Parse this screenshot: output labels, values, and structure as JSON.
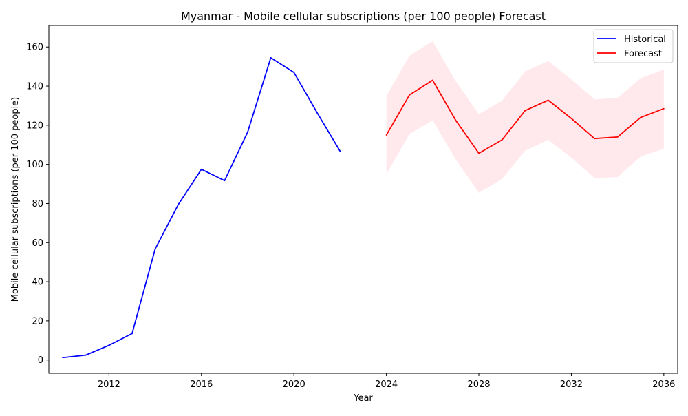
{
  "chart_data": {
    "type": "line",
    "title": "Myanmar - Mobile cellular subscriptions (per 100 people) Forecast",
    "xlabel": "Year",
    "ylabel": "Mobile cellular subscriptions (per 100 people)",
    "xlim": [
      2009.4,
      2036.6
    ],
    "ylim": [
      -6.8,
      171
    ],
    "xticks": [
      2012,
      2016,
      2020,
      2024,
      2028,
      2032,
      2036
    ],
    "yticks": [
      0,
      20,
      40,
      60,
      80,
      100,
      120,
      140,
      160
    ],
    "legend_position": "top-right",
    "grid": false,
    "series": [
      {
        "name": "Historical",
        "color": "#0000ff",
        "x": [
          2010,
          2011,
          2012,
          2013,
          2014,
          2015,
          2016,
          2017,
          2018,
          2019,
          2020,
          2021,
          2022
        ],
        "values": [
          1.2,
          2.5,
          7.5,
          13.5,
          56.8,
          79.5,
          97.5,
          91.7,
          116.5,
          154.5,
          147.0,
          126.5,
          106.7
        ]
      },
      {
        "name": "Forecast",
        "color": "#ff0000",
        "x": [
          2024,
          2025,
          2026,
          2027,
          2028,
          2029,
          2030,
          2031,
          2032,
          2033,
          2034,
          2035,
          2036
        ],
        "values": [
          115.0,
          135.5,
          143.0,
          122.5,
          105.7,
          112.5,
          127.5,
          132.8,
          123.5,
          113.2,
          114.0,
          124.0,
          128.5
        ],
        "lower": [
          95.0,
          115.5,
          122.5,
          102.5,
          85.5,
          92.5,
          107.0,
          112.5,
          103.5,
          93.0,
          93.5,
          104.0,
          108.0
        ],
        "upper": [
          135.0,
          155.5,
          163.0,
          142.5,
          125.7,
          132.5,
          147.5,
          152.8,
          143.5,
          133.2,
          134.0,
          144.0,
          148.5
        ],
        "band_color": "#ffc0cb"
      }
    ]
  }
}
